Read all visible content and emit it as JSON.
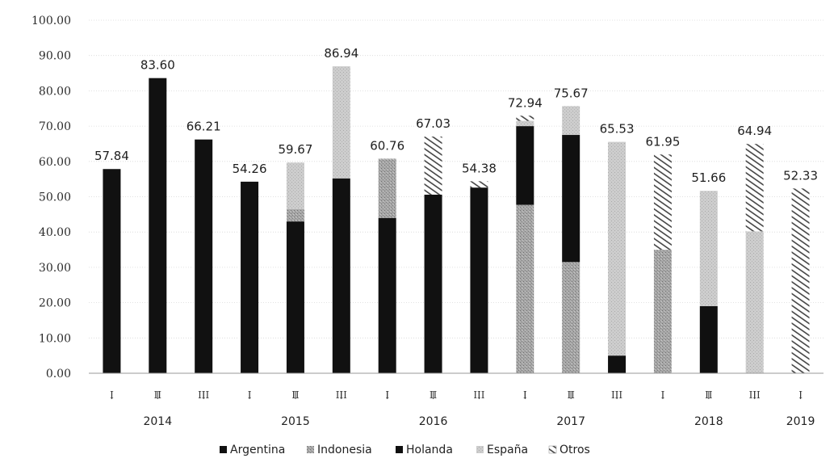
{
  "chart_data": {
    "type": "bar",
    "stacked": true,
    "title": "",
    "xlabel": "",
    "ylabel": "",
    "ylim": [
      0,
      100
    ],
    "y_ticks": [
      "0.00",
      "10.00",
      "20.00",
      "30.00",
      "40.00",
      "50.00",
      "60.00",
      "70.00",
      "80.00",
      "90.00",
      "100.00"
    ],
    "grid": true,
    "legend_placement": "bottom",
    "categories": [
      "I",
      "II",
      "III",
      "I",
      "II",
      "III",
      "I",
      "II",
      "III",
      "I",
      "II",
      "III",
      "I",
      "II",
      "III",
      "I"
    ],
    "year_groups": [
      {
        "label": "2014",
        "start": 0,
        "end": 2
      },
      {
        "label": "2015",
        "start": 3,
        "end": 5
      },
      {
        "label": "2016",
        "start": 6,
        "end": 8
      },
      {
        "label": "2017",
        "start": 9,
        "end": 11
      },
      {
        "label": "2018",
        "start": 12,
        "end": 14
      },
      {
        "label": "2019",
        "start": 15,
        "end": 15
      }
    ],
    "totals": [
      "57.84",
      "83.60",
      "66.21",
      "54.26",
      "59.67",
      "86.94",
      "60.76",
      "67.03",
      "54.38",
      "72.94",
      "75.67",
      "65.53",
      "61.95",
      "51.66",
      "64.94",
      "52.33"
    ],
    "series": [
      {
        "name": "Argentina",
        "color": "#111111",
        "values": [
          57.84,
          83.6,
          66.21,
          54.26,
          43.0,
          55.2,
          44.0,
          50.6,
          52.6,
          0,
          0,
          0,
          0,
          0,
          0,
          0
        ]
      },
      {
        "name": "Indonesia",
        "color": "#9a9a9a",
        "values": [
          0,
          0,
          0,
          0,
          3.5,
          0,
          16.76,
          0,
          0,
          47.7,
          31.5,
          0,
          35.0,
          0,
          0,
          0
        ]
      },
      {
        "name": "Holanda",
        "color": "#101010",
        "values": [
          0,
          0,
          0,
          0,
          0,
          0,
          0,
          0,
          0,
          22.3,
          36.0,
          5.0,
          0,
          19.0,
          0,
          0
        ]
      },
      {
        "name": "España",
        "color": "#c4c4c4",
        "values": [
          0,
          0,
          0,
          0,
          13.17,
          31.74,
          0,
          0,
          0,
          1.5,
          8.17,
          60.53,
          0,
          32.66,
          40.2,
          0
        ]
      },
      {
        "name": "Otros",
        "color": "#808080",
        "values": [
          0,
          0,
          0,
          0,
          0,
          0,
          0,
          16.43,
          1.78,
          1.44,
          0,
          0,
          26.95,
          0,
          24.74,
          52.33
        ]
      }
    ]
  },
  "colors": {
    "gridline": "#d8d8d8",
    "axis": "#9a9a9a"
  }
}
